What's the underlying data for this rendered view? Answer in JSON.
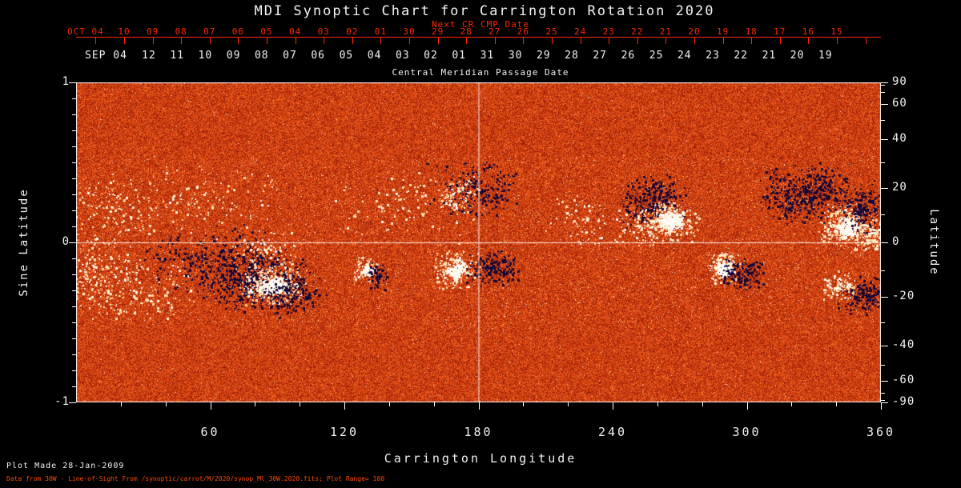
{
  "title": "MDI Synoptic Chart for Carrington Rotation 2020",
  "colors": {
    "background": "#000000",
    "foreground": "#f2f2f2",
    "axis_red": "#ff2600",
    "footer_orange": "#ff4a00"
  },
  "top_axis": {
    "label": "Next CR CMP Date",
    "prefix": "OCT 04",
    "ticks": [
      "10",
      "09",
      "08",
      "07",
      "06",
      "05",
      "04",
      "03",
      "02",
      "01",
      "30",
      "29",
      "28",
      "27",
      "26",
      "25",
      "24",
      "23",
      "22",
      "21",
      "20",
      "19",
      "18",
      "17",
      "16",
      "15"
    ]
  },
  "cmp_axis": {
    "label": "Central Meridian Passage Date",
    "prefix": "SEP 04",
    "ticks": [
      "12",
      "11",
      "10",
      "09",
      "08",
      "07",
      "06",
      "05",
      "04",
      "03",
      "02",
      "01",
      "31",
      "30",
      "29",
      "28",
      "27",
      "26",
      "25",
      "24",
      "23",
      "22",
      "21",
      "20",
      "19"
    ]
  },
  "left_axis": {
    "label": "Sine Latitude",
    "ticks": [
      "1",
      "0",
      "-1"
    ]
  },
  "right_axis": {
    "label": "Latitude",
    "ticks": [
      90,
      60,
      40,
      20,
      0,
      -20,
      -40,
      -60,
      -90
    ]
  },
  "bottom_axis": {
    "label": "Carrington Longitude",
    "ticks": [
      60,
      120,
      180,
      240,
      300,
      360
    ]
  },
  "footer": {
    "line1": "Plot Made 28-Jan-2009",
    "line2": "Data from 30W - Line-of-Sight From /synoptic/carrot/M/2020/synop_Ml_30W.2020.fits; Plot Range=  100"
  },
  "chart_data": {
    "type": "heatmap",
    "title": "MDI Synoptic Chart for Carrington Rotation 2020",
    "description": "Synoptic map of the line-of-sight photospheric magnetic field for Carrington rotation 2020. Mottled orange/red background = weak field; white speckles/blobs = strong positive polarity; dark navy/black blobs = strong negative polarity. White crosshair at longitude 180 and sine latitude 0.",
    "xlabel": "Carrington Longitude",
    "x_range": [
      0,
      360
    ],
    "x_ticks": [
      60,
      120,
      180,
      240,
      300,
      360
    ],
    "ylabel_left": "Sine Latitude",
    "y_range": [
      -1,
      1
    ],
    "ylabel_right": "Latitude",
    "right_ticks_deg": [
      90,
      60,
      40,
      20,
      0,
      -20,
      -40,
      -60,
      -90
    ],
    "plot_range_gauss": 100,
    "grid": false,
    "crosshair": {
      "longitude": 180,
      "sine_latitude": 0
    },
    "palette": {
      "strong_negative": "#0a0848",
      "weak_negative": "#a22208",
      "background": "#e85216",
      "weak_positive": "#ff8e38",
      "strong_positive": "#ffffff"
    },
    "noise": {
      "base": 0.3,
      "spread": 0.34,
      "band_speckle_prob": 0.03,
      "polar_speckle_prob": 0.008
    },
    "active_regions": [
      {
        "lon": 8,
        "slat": -0.18,
        "sx": 9,
        "sy": 0.14,
        "pol": "pos",
        "n": 260,
        "core": false
      },
      {
        "lon": 16,
        "slat": 0.22,
        "sx": 10,
        "sy": 0.1,
        "pol": "pos",
        "n": 140,
        "core": false
      },
      {
        "lon": 30,
        "slat": -0.3,
        "sx": 12,
        "sy": 0.1,
        "pol": "pos",
        "n": 180,
        "core": false
      },
      {
        "lon": 48,
        "slat": -0.12,
        "sx": 10,
        "sy": 0.1,
        "pol": "neg",
        "n": 140,
        "core": false
      },
      {
        "lon": 58,
        "slat": 0.25,
        "sx": 16,
        "sy": 0.12,
        "pol": "pos",
        "n": 160,
        "core": false
      },
      {
        "lon": 70,
        "slat": -0.1,
        "sx": 11,
        "sy": 0.11,
        "pol": "neg",
        "n": 320,
        "core": false
      },
      {
        "lon": 80,
        "slat": -0.24,
        "sx": 12,
        "sy": 0.09,
        "pol": "neg",
        "n": 700,
        "core": false
      },
      {
        "lon": 88,
        "slat": -0.27,
        "sx": 7,
        "sy": 0.06,
        "pol": "pos",
        "n": 420,
        "core": true
      },
      {
        "lon": 97,
        "slat": -0.33,
        "sx": 7,
        "sy": 0.07,
        "pol": "neg",
        "n": 260,
        "core": false
      },
      {
        "lon": 84,
        "slat": -0.05,
        "sx": 8,
        "sy": 0.06,
        "pol": "pos",
        "n": 120,
        "core": false
      },
      {
        "lon": 130,
        "slat": -0.17,
        "sx": 3,
        "sy": 0.04,
        "pol": "pos",
        "n": 110,
        "core": true
      },
      {
        "lon": 135,
        "slat": -0.21,
        "sx": 3,
        "sy": 0.04,
        "pol": "neg",
        "n": 90,
        "core": false
      },
      {
        "lon": 170,
        "slat": -0.17,
        "sx": 5,
        "sy": 0.06,
        "pol": "pos",
        "n": 240,
        "core": true
      },
      {
        "lon": 186,
        "slat": -0.16,
        "sx": 6,
        "sy": 0.06,
        "pol": "neg",
        "n": 260,
        "core": false
      },
      {
        "lon": 177,
        "slat": 0.34,
        "sx": 10,
        "sy": 0.09,
        "pol": "neg",
        "n": 320,
        "core": false
      },
      {
        "lon": 171,
        "slat": 0.3,
        "sx": 5,
        "sy": 0.06,
        "pol": "pos",
        "n": 110,
        "core": false
      },
      {
        "lon": 150,
        "slat": 0.22,
        "sx": 18,
        "sy": 0.12,
        "pol": "pos",
        "n": 140,
        "core": false
      },
      {
        "lon": 226,
        "slat": 0.15,
        "sx": 8,
        "sy": 0.08,
        "pol": "pos",
        "n": 90,
        "core": false
      },
      {
        "lon": 258,
        "slat": 0.25,
        "sx": 7,
        "sy": 0.08,
        "pol": "neg",
        "n": 420,
        "core": false
      },
      {
        "lon": 266,
        "slat": 0.14,
        "sx": 6,
        "sy": 0.06,
        "pol": "pos",
        "n": 360,
        "core": true
      },
      {
        "lon": 252,
        "slat": 0.1,
        "sx": 6,
        "sy": 0.06,
        "pol": "pos",
        "n": 110,
        "core": false
      },
      {
        "lon": 290,
        "slat": -0.16,
        "sx": 4,
        "sy": 0.05,
        "pol": "pos",
        "n": 240,
        "core": true
      },
      {
        "lon": 298,
        "slat": -0.2,
        "sx": 5,
        "sy": 0.05,
        "pol": "neg",
        "n": 220,
        "core": false
      },
      {
        "lon": 322,
        "slat": 0.28,
        "sx": 8,
        "sy": 0.09,
        "pol": "neg",
        "n": 380,
        "core": false
      },
      {
        "lon": 334,
        "slat": 0.35,
        "sx": 6,
        "sy": 0.07,
        "pol": "neg",
        "n": 220,
        "core": false
      },
      {
        "lon": 345,
        "slat": 0.1,
        "sx": 6,
        "sy": 0.07,
        "pol": "pos",
        "n": 420,
        "core": true
      },
      {
        "lon": 352,
        "slat": 0.22,
        "sx": 5,
        "sy": 0.08,
        "pol": "neg",
        "n": 300,
        "core": false
      },
      {
        "lon": 357,
        "slat": 0.05,
        "sx": 4,
        "sy": 0.05,
        "pol": "pos",
        "n": 140,
        "core": false
      },
      {
        "lon": 352,
        "slat": -0.33,
        "sx": 6,
        "sy": 0.06,
        "pol": "neg",
        "n": 280,
        "core": false
      },
      {
        "lon": 341,
        "slat": -0.28,
        "sx": 4,
        "sy": 0.05,
        "pol": "pos",
        "n": 130,
        "core": false
      }
    ]
  }
}
